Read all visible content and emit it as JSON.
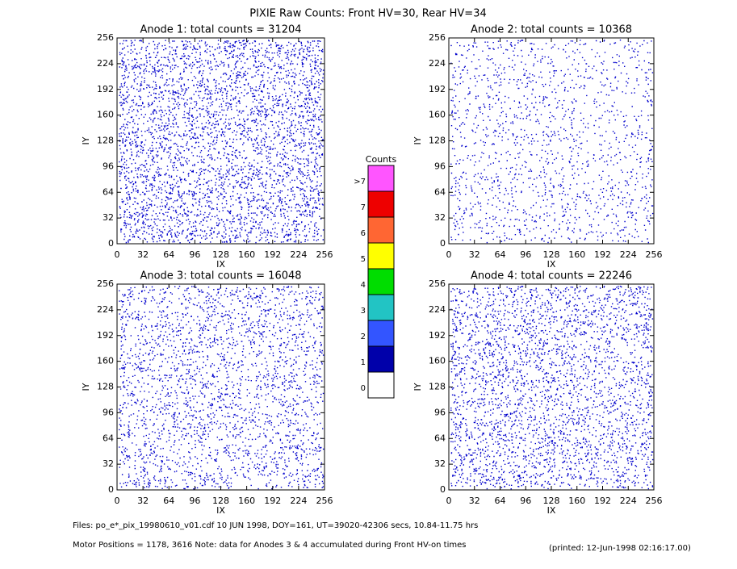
{
  "title": "PIXIE Raw Counts:  Front HV=30, Rear HV=34",
  "chart_data": [
    {
      "type": "heatmap",
      "title": "Anode 1: total counts = 31204",
      "xlabel": "IX",
      "ylabel": "IY",
      "xlim": [
        0,
        256
      ],
      "ylim": [
        0,
        256
      ],
      "xticks": [
        0,
        32,
        64,
        96,
        128,
        160,
        192,
        224,
        256
      ],
      "yticks": [
        0,
        32,
        64,
        96,
        128,
        160,
        192,
        224,
        256
      ]
    },
    {
      "type": "heatmap",
      "title": "Anode 2: total counts = 10368",
      "xlabel": "IX",
      "ylabel": "IY",
      "xlim": [
        0,
        256
      ],
      "ylim": [
        0,
        256
      ],
      "xticks": [
        0,
        32,
        64,
        96,
        128,
        160,
        192,
        224,
        256
      ],
      "yticks": [
        0,
        32,
        64,
        96,
        128,
        160,
        192,
        224,
        256
      ]
    },
    {
      "type": "heatmap",
      "title": "Anode 3: total counts = 16048",
      "xlabel": "IX",
      "ylabel": "IY",
      "xlim": [
        0,
        256
      ],
      "ylim": [
        0,
        256
      ],
      "xticks": [
        0,
        32,
        64,
        96,
        128,
        160,
        192,
        224,
        256
      ],
      "yticks": [
        0,
        32,
        64,
        96,
        128,
        160,
        192,
        224,
        256
      ]
    },
    {
      "type": "heatmap",
      "title": "Anode 4: total counts = 22246",
      "xlabel": "IX",
      "ylabel": "IY",
      "xlim": [
        0,
        256
      ],
      "ylim": [
        0,
        256
      ],
      "xticks": [
        0,
        32,
        64,
        96,
        128,
        160,
        192,
        224,
        256
      ],
      "yticks": [
        0,
        32,
        64,
        96,
        128,
        160,
        192,
        224,
        256
      ]
    }
  ],
  "colorbar": {
    "title": "Counts",
    "labels": [
      "0",
      "1",
      "2",
      "3",
      "4",
      "5",
      "6",
      "7",
      ">7"
    ],
    "colors": [
      "#ffffff",
      "#0000aa",
      "#3355ff",
      "#22c4c4",
      "#00dd00",
      "#ffff00",
      "#ff6633",
      "#ee0000",
      "#ff55ff"
    ]
  },
  "footer": {
    "files": "Files: po_e*_pix_19980610_v01.cdf    10 JUN 1998, DOY=161, UT=39020-42306 secs, 10.84-11.75 hrs",
    "motor": "Motor Positions = 1178, 3616    Note: data for Anodes 3 & 4 accumulated during Front HV-on times",
    "printed": "(printed: 12-Jun-1998 02:16:17.00)"
  }
}
